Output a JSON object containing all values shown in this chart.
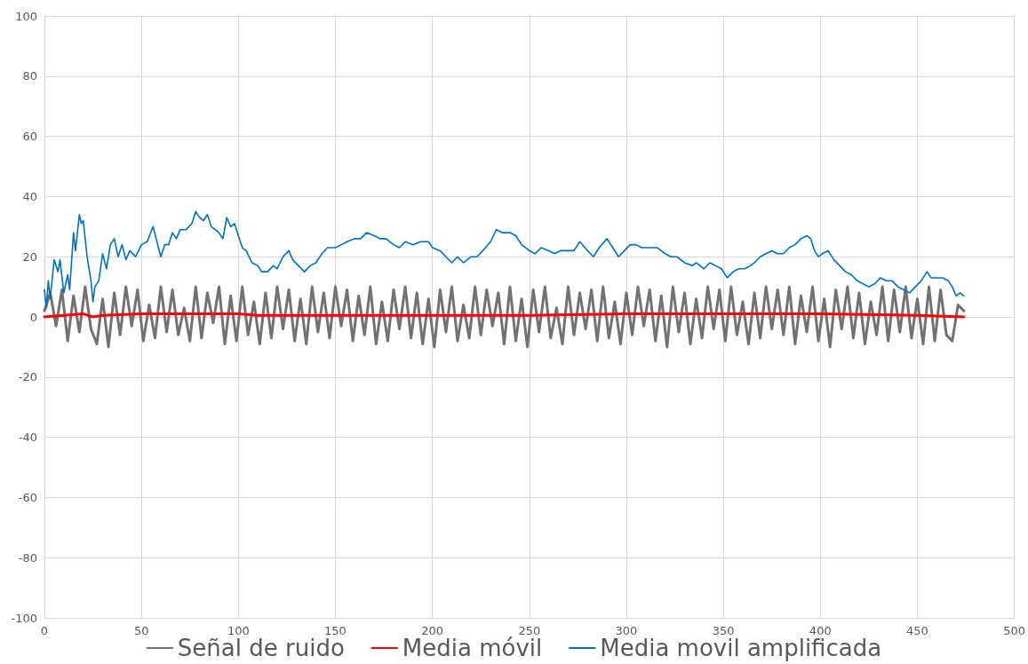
{
  "chart_data": {
    "type": "line",
    "xlim": [
      0,
      500
    ],
    "ylim": [
      -100,
      100
    ],
    "xticks": [
      0,
      50,
      100,
      150,
      200,
      250,
      300,
      350,
      400,
      450,
      500
    ],
    "yticks": [
      -100,
      -80,
      -60,
      -40,
      -20,
      0,
      20,
      40,
      60,
      80,
      100
    ],
    "grid": true,
    "legend": "bottom",
    "marker": "none",
    "line_style": "solid",
    "series": [
      {
        "name": "Señal de ruido",
        "color": "#767171",
        "x": [
          0,
          3,
          6,
          9,
          12,
          15,
          18,
          21,
          24,
          27,
          30,
          33,
          36,
          39,
          42,
          45,
          48,
          51,
          54,
          57,
          60,
          63,
          66,
          69,
          72,
          75,
          78,
          81,
          84,
          87,
          90,
          93,
          96,
          99,
          102,
          105,
          108,
          111,
          114,
          117,
          120,
          123,
          126,
          129,
          132,
          135,
          138,
          141,
          144,
          147,
          150,
          153,
          156,
          159,
          162,
          165,
          168,
          171,
          174,
          177,
          180,
          183,
          186,
          189,
          192,
          195,
          198,
          201,
          204,
          207,
          210,
          213,
          216,
          219,
          222,
          225,
          228,
          231,
          234,
          237,
          240,
          243,
          246,
          249,
          252,
          255,
          258,
          261,
          264,
          267,
          270,
          273,
          276,
          279,
          282,
          285,
          288,
          291,
          294,
          297,
          300,
          303,
          306,
          309,
          312,
          315,
          318,
          321,
          324,
          327,
          330,
          333,
          336,
          339,
          342,
          345,
          348,
          351,
          354,
          357,
          360,
          363,
          366,
          369,
          372,
          375,
          378,
          381,
          384,
          387,
          390,
          393,
          396,
          399,
          402,
          405,
          408,
          411,
          414,
          417,
          420,
          423,
          426,
          429,
          432,
          435,
          438,
          441,
          444,
          447,
          450,
          453,
          456,
          459,
          462,
          465,
          468,
          471,
          474
        ],
        "values": [
          2,
          8,
          -3,
          9,
          -8,
          7,
          -5,
          10,
          -4,
          -9,
          6,
          -10,
          8,
          -6,
          10,
          -3,
          9,
          -8,
          4,
          -7,
          10,
          -5,
          9,
          -6,
          3,
          -8,
          10,
          -7,
          8,
          -2,
          10,
          -9,
          7,
          -8,
          10,
          -6,
          5,
          -9,
          8,
          -7,
          10,
          -4,
          9,
          -8,
          6,
          -9,
          10,
          -5,
          8,
          -7,
          10,
          -3,
          9,
          -8,
          7,
          -6,
          10,
          -9,
          5,
          -8,
          9,
          -4,
          10,
          -7,
          8,
          -9,
          6,
          -10,
          9,
          -5,
          10,
          -8,
          4,
          -7,
          10,
          -6,
          9,
          -3,
          8,
          -9,
          10,
          -8,
          6,
          -10,
          9,
          -5,
          10,
          -7,
          3,
          -9,
          10,
          -6,
          8,
          -4,
          9,
          -8,
          10,
          -7,
          5,
          -9,
          8,
          -6,
          10,
          -3,
          9,
          -8,
          7,
          -10,
          10,
          -5,
          8,
          -9,
          6,
          -7,
          10,
          -4,
          9,
          -8,
          10,
          -6,
          5,
          -9,
          8,
          -7,
          10,
          -4,
          9,
          -6,
          10,
          -9,
          7,
          -5,
          10,
          -8,
          6,
          -10,
          9,
          -4,
          10,
          -7,
          8,
          -9,
          5,
          -6,
          10,
          -8,
          9,
          -5,
          10,
          -7,
          6,
          -9,
          10,
          -8,
          9,
          -6,
          -8,
          4,
          2
        ]
      },
      {
        "name": "Media móvil",
        "color": "#ff0000",
        "x": [
          0,
          10,
          20,
          25,
          30,
          50,
          100,
          110,
          200,
          250,
          300,
          400,
          450,
          474
        ],
        "values": [
          0,
          0.5,
          1,
          0,
          0.5,
          1,
          1,
          0.5,
          0.5,
          0.5,
          1,
          1,
          0.5,
          0
        ]
      },
      {
        "name": "Media movil amplificada",
        "color": "#0070c0",
        "x": [
          0,
          1,
          2,
          3,
          5,
          7,
          8,
          10,
          12,
          13,
          15,
          16,
          18,
          19,
          20,
          22,
          24,
          25,
          26,
          28,
          30,
          32,
          34,
          36,
          38,
          40,
          42,
          44,
          47,
          50,
          53,
          56,
          58,
          60,
          62,
          64,
          66,
          68,
          70,
          73,
          76,
          78,
          80,
          82,
          84,
          86,
          88,
          90,
          92,
          94,
          96,
          98,
          100,
          102,
          104,
          107,
          110,
          112,
          115,
          118,
          120,
          123,
          126,
          128,
          131,
          134,
          137,
          140,
          143,
          146,
          150,
          153,
          156,
          160,
          163,
          166,
          170,
          173,
          176,
          180,
          183,
          186,
          190,
          194,
          198,
          200,
          204,
          207,
          210,
          213,
          216,
          220,
          223,
          226,
          230,
          233,
          236,
          240,
          243,
          246,
          250,
          253,
          256,
          260,
          263,
          266,
          270,
          273,
          276,
          280,
          283,
          286,
          290,
          293,
          296,
          299,
          302,
          305,
          308,
          312,
          316,
          320,
          323,
          326,
          330,
          334,
          336,
          340,
          343,
          346,
          349,
          352,
          355,
          358,
          361,
          364,
          366,
          369,
          372,
          375,
          378,
          381,
          384,
          387,
          390,
          393,
          395,
          397,
          399,
          401,
          404,
          407,
          410,
          413,
          416,
          419,
          422,
          425,
          428,
          431,
          434,
          437,
          440,
          443,
          446,
          449,
          452,
          455,
          457,
          460,
          463,
          466,
          468,
          470,
          472,
          474
        ],
        "values": [
          9,
          3,
          12,
          6,
          19,
          15,
          19,
          8,
          14,
          9,
          28,
          22,
          34,
          31,
          32,
          20,
          12,
          5,
          10,
          12,
          21,
          16,
          24,
          26,
          20,
          24,
          19,
          22,
          20,
          24,
          25,
          30,
          25,
          20,
          24,
          24,
          28,
          26,
          29,
          29,
          31,
          35,
          33,
          32,
          34,
          30,
          29,
          28,
          26,
          33,
          30,
          31,
          27,
          23,
          22,
          18,
          17,
          15,
          15,
          17,
          16,
          20,
          22,
          19,
          17,
          15,
          17,
          18,
          21,
          23,
          23,
          24,
          25,
          26,
          26,
          28,
          27,
          26,
          26,
          24,
          23,
          25,
          24,
          25,
          25,
          23,
          22,
          20,
          18,
          20,
          18,
          20,
          20,
          22,
          25,
          29,
          28,
          28,
          27,
          24,
          22,
          21,
          23,
          22,
          21,
          22,
          22,
          22,
          25,
          22,
          20,
          23,
          26,
          23,
          20,
          22,
          24,
          24,
          23,
          23,
          23,
          21,
          20,
          20,
          18,
          17,
          18,
          16,
          18,
          17,
          16,
          13,
          15,
          16,
          16,
          17,
          18,
          20,
          21,
          22,
          21,
          21,
          23,
          24,
          26,
          27,
          26,
          22,
          20,
          21,
          22,
          19,
          17,
          15,
          14,
          12,
          11,
          10,
          11,
          13,
          12,
          12,
          10,
          9,
          8,
          10,
          12,
          15,
          13,
          13,
          13,
          12,
          10,
          7,
          8,
          7
        ]
      }
    ]
  }
}
